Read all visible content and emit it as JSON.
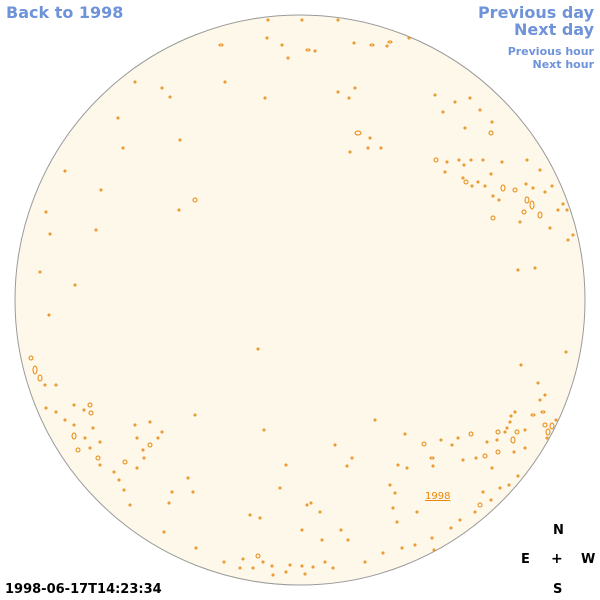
{
  "nav": {
    "back_label": "Back to 1998",
    "previous_day_label": "Previous day",
    "next_day_label": "Next day",
    "previous_hour_label": "Previous hour",
    "next_hour_label": "Next hour"
  },
  "map": {
    "region_label": "1998",
    "disk_color": "#fdf8ea",
    "outline_color": "#9a9a9a",
    "feature_color": "#e8860a"
  },
  "timestamp": "1998-06-17T14:23:34",
  "compass": {
    "north": "N",
    "east": "E",
    "center": "+",
    "west": "W",
    "south": "S"
  }
}
